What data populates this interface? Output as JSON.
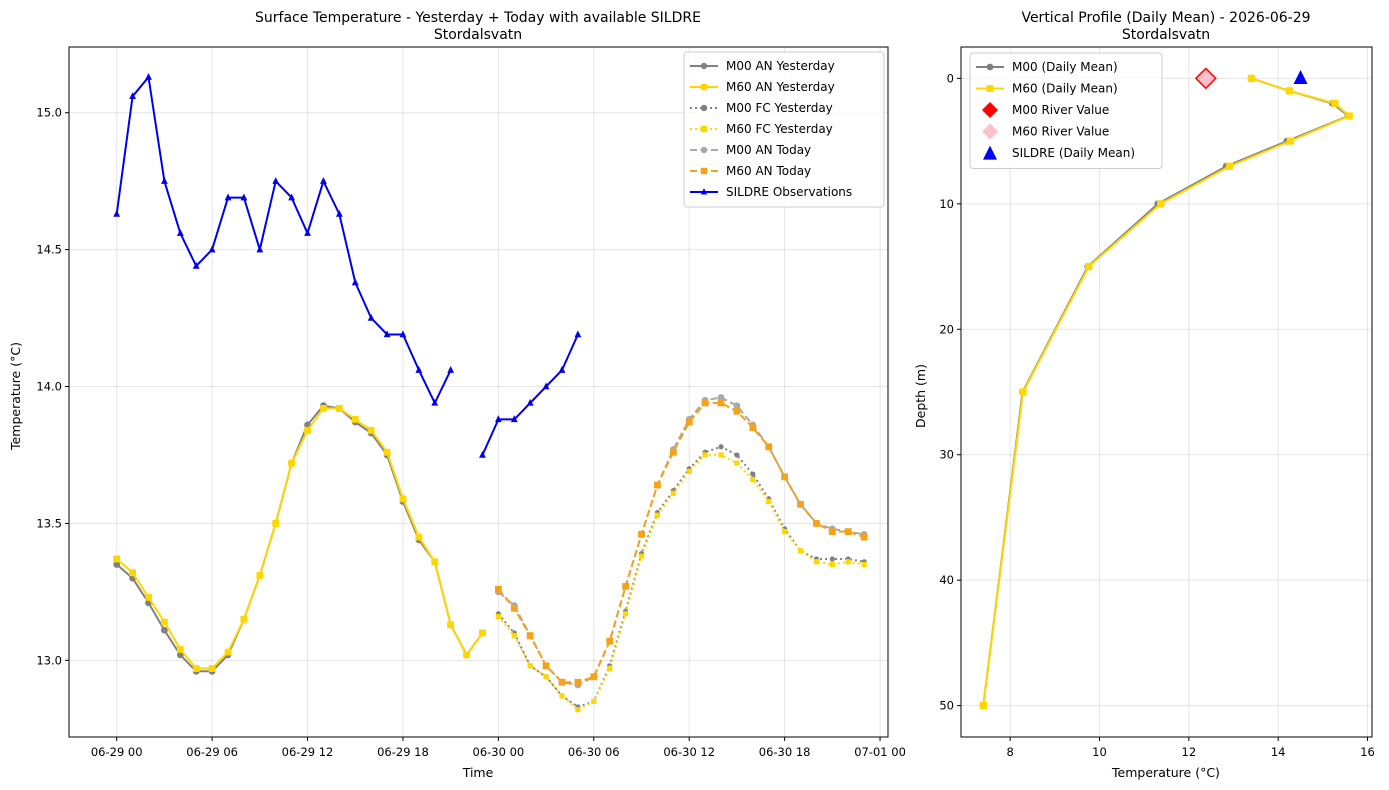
{
  "chart_data": [
    {
      "type": "line",
      "title": "Surface Temperature - Yesterday + Today with available SILDRE",
      "subtitle": "Stordalsvatn",
      "xlabel": "Time",
      "ylabel": "Temperature (°C)",
      "xlim": [
        "2026-06-28 21:00",
        "2026-07-01 00:30"
      ],
      "ylim": [
        12.72,
        15.24
      ],
      "x_ticks": [
        "06-29 00",
        "06-29 06",
        "06-29 12",
        "06-29 18",
        "06-30 00",
        "06-30 06",
        "06-30 12",
        "06-30 18",
        "07-01 00"
      ],
      "y_ticks": [
        13.0,
        13.5,
        14.0,
        14.5,
        15.0
      ],
      "grid": true,
      "legend_position": "top-right",
      "series": [
        {
          "name": "M00 AN Yesterday",
          "color": "#808080",
          "line": "solid",
          "marker": "circle",
          "x_start": "2026-06-29 00:00",
          "step_hours": 1,
          "values": [
            13.35,
            13.3,
            13.21,
            13.11,
            13.02,
            12.96,
            12.96,
            13.02,
            13.15,
            13.31,
            13.5,
            13.72,
            13.86,
            13.93,
            13.92,
            13.87,
            13.83,
            13.75,
            13.58,
            13.44,
            13.36,
            13.13,
            13.02,
            13.1
          ]
        },
        {
          "name": "M60 AN Yesterday",
          "color": "#ffd700",
          "line": "solid",
          "marker": "square",
          "x_start": "2026-06-29 00:00",
          "step_hours": 1,
          "values": [
            13.37,
            13.32,
            13.23,
            13.14,
            13.04,
            12.97,
            12.97,
            13.03,
            13.15,
            13.31,
            13.5,
            13.72,
            13.84,
            13.92,
            13.92,
            13.88,
            13.84,
            13.76,
            13.59,
            13.45,
            13.36,
            13.13,
            13.02,
            13.1
          ]
        },
        {
          "name": "M00 FC Yesterday",
          "color": "#808080",
          "line": "dotted",
          "marker": "circle",
          "x_start": "2026-06-30 00:00",
          "step_hours": 1,
          "values": [
            13.17,
            13.1,
            12.98,
            12.94,
            12.87,
            12.83,
            12.85,
            12.98,
            13.18,
            13.39,
            13.54,
            13.62,
            13.7,
            13.76,
            13.78,
            13.75,
            13.68,
            13.59,
            13.48,
            13.4,
            13.37,
            13.37,
            13.37,
            13.36
          ]
        },
        {
          "name": "M60 FC Yesterday",
          "color": "#ffd700",
          "line": "dotted",
          "marker": "square",
          "x_start": "2026-06-30 00:00",
          "step_hours": 1,
          "values": [
            13.16,
            13.09,
            12.98,
            12.94,
            12.87,
            12.82,
            12.85,
            12.97,
            13.17,
            13.38,
            13.53,
            13.61,
            13.69,
            13.75,
            13.75,
            13.72,
            13.66,
            13.58,
            13.47,
            13.4,
            13.36,
            13.35,
            13.36,
            13.35
          ]
        },
        {
          "name": "M00 AN Today",
          "color": "#a9a9a9",
          "line": "dashed",
          "marker": "circle",
          "x_start": "2026-06-30 00:00",
          "step_hours": 1,
          "values": [
            13.25,
            13.2,
            13.09,
            12.98,
            12.92,
            12.91,
            12.94,
            13.07,
            13.27,
            13.46,
            13.64,
            13.77,
            13.88,
            13.95,
            13.96,
            13.93,
            13.86,
            13.78,
            13.67,
            13.57,
            13.5,
            13.48,
            13.47,
            13.46
          ]
        },
        {
          "name": "M60 AN Today",
          "color": "#f5a21a",
          "line": "dashed",
          "marker": "square",
          "x_start": "2026-06-30 00:00",
          "step_hours": 1,
          "values": [
            13.26,
            13.19,
            13.09,
            12.98,
            12.92,
            12.92,
            12.94,
            13.07,
            13.27,
            13.46,
            13.64,
            13.76,
            13.87,
            13.94,
            13.94,
            13.91,
            13.85,
            13.78,
            13.67,
            13.57,
            13.5,
            13.47,
            13.47,
            13.45
          ]
        },
        {
          "name": "SILDRE Observations",
          "color": "#0000ee",
          "line": "solid",
          "marker": "triangle",
          "x_start": "2026-06-29 00:00",
          "step_hours": 1,
          "values": [
            14.63,
            15.06,
            15.13,
            14.75,
            14.56,
            14.44,
            14.5,
            14.69,
            14.69,
            14.5,
            14.75,
            14.69,
            14.56,
            14.75,
            14.63,
            14.38,
            14.25,
            14.19,
            14.19,
            14.06,
            13.94,
            14.06,
            null,
            13.75,
            13.88,
            13.88,
            13.94,
            14.0,
            14.06,
            14.19
          ]
        }
      ]
    },
    {
      "type": "line",
      "title": "Vertical Profile (Daily Mean) - 2026-06-29",
      "subtitle": "Stordalsvatn",
      "xlabel": "Temperature (°C)",
      "ylabel": "Depth (m)",
      "xlim": [
        6.9,
        16.1
      ],
      "ylim": [
        52.5,
        -2.5
      ],
      "y_inverted": true,
      "x_ticks": [
        8,
        10,
        12,
        14,
        16
      ],
      "y_ticks": [
        0,
        10,
        20,
        30,
        40,
        50
      ],
      "grid": true,
      "legend_position": "top-left",
      "series": [
        {
          "name": "M00 (Daily Mean)",
          "color": "#808080",
          "line": "solid",
          "marker": "circle",
          "points": [
            [
              13.4,
              0
            ],
            [
              14.25,
              1
            ],
            [
              15.22,
              2
            ],
            [
              15.57,
              3
            ],
            [
              14.2,
              5
            ],
            [
              12.84,
              7
            ],
            [
              11.31,
              10
            ],
            [
              9.74,
              15
            ],
            [
              8.28,
              25
            ],
            [
              7.4,
              50
            ]
          ]
        },
        {
          "name": "M60 (Daily Mean)",
          "color": "#ffd700",
          "line": "solid",
          "marker": "square",
          "points": [
            [
              13.4,
              0
            ],
            [
              14.25,
              1
            ],
            [
              15.27,
              2
            ],
            [
              15.59,
              3
            ],
            [
              14.27,
              5
            ],
            [
              12.91,
              7
            ],
            [
              11.37,
              10
            ],
            [
              9.76,
              15
            ],
            [
              8.29,
              25
            ],
            [
              7.4,
              50
            ]
          ]
        },
        {
          "name": "M00 River Value",
          "color": "#ff0000",
          "marker": "diamond",
          "points": [
            [
              12.38,
              0
            ]
          ]
        },
        {
          "name": "M60 River Value",
          "color": "#ffc0cb",
          "marker": "diamond",
          "points": [
            [
              12.38,
              0
            ]
          ]
        },
        {
          "name": "SILDRE (Daily Mean)",
          "color": "#0000ff",
          "marker": "triangle",
          "points": [
            [
              14.5,
              0
            ]
          ]
        }
      ]
    }
  ]
}
